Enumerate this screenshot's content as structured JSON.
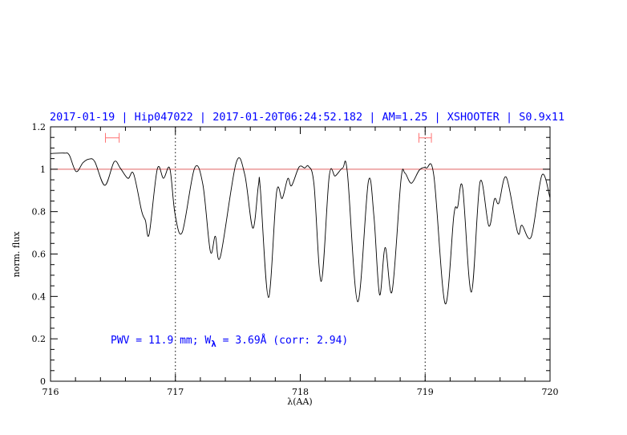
{
  "chart_data": {
    "type": "line",
    "title": "2017-01-19 | Hip047022 | 2017-01-20T06:24:52.182 | AM=1.25 | XSHOOTER | S0.9x11",
    "xlabel": "λ(AA)",
    "ylabel": "norm. flux",
    "xlim": [
      716,
      720
    ],
    "ylim": [
      0,
      1.2
    ],
    "xticks": [
      "716",
      "717",
      "718",
      "719",
      "720"
    ],
    "yticks": [
      "0",
      "0.2",
      "0.4",
      "0.6",
      "0.8",
      "1",
      "1.2"
    ],
    "grid": false,
    "reference_line": {
      "y": 1.0,
      "color": "#e06060"
    },
    "vertical_lines": [
      717,
      719
    ],
    "intervals": [
      {
        "x": [
          716.44,
          716.55
        ],
        "y": 1.148,
        "color": "#ff7070"
      },
      {
        "x": [
          718.95,
          719.05
        ],
        "y": 1.148,
        "color": "#ff7070"
      }
    ],
    "annotation": {
      "prefix": "PWV = 11.9 mm; W",
      "sub": "λ",
      "suffix": " = 3.69Å (corr: 2.94)",
      "color": "#0000ff"
    },
    "series": [
      {
        "color": "#000000",
        "x": [
          716.0,
          716.11,
          716.15,
          716.205,
          716.26,
          716.31,
          716.355,
          716.435,
          716.51,
          716.56,
          716.62,
          716.665,
          716.73,
          716.76,
          716.79,
          716.855,
          716.905,
          716.955,
          716.997,
          717.055,
          717.153,
          717.22,
          717.28,
          717.32,
          717.36,
          717.485,
          717.555,
          717.62,
          717.665,
          717.68,
          717.745,
          717.81,
          717.855,
          717.9,
          717.93,
          717.99,
          718.035,
          718.067,
          718.11,
          718.168,
          718.232,
          718.28,
          718.34,
          718.377,
          718.46,
          718.545,
          718.59,
          718.635,
          718.68,
          718.735,
          718.806,
          718.838,
          718.89,
          718.955,
          719.01,
          719.07,
          719.16,
          719.23,
          719.26,
          719.3,
          719.37,
          719.44,
          719.51,
          719.555,
          719.59,
          719.65,
          719.74,
          719.775,
          719.85,
          719.935,
          720.0
        ],
        "y": [
          1.074,
          1.076,
          1.067,
          0.989,
          1.031,
          1.048,
          1.035,
          0.924,
          1.035,
          1.004,
          0.957,
          0.979,
          0.802,
          0.758,
          0.694,
          1.001,
          0.957,
          1.004,
          0.789,
          0.703,
          1.004,
          0.928,
          0.612,
          0.684,
          0.587,
          1.027,
          0.976,
          0.722,
          0.925,
          0.909,
          0.395,
          0.89,
          0.862,
          0.956,
          0.922,
          1.01,
          1.006,
          1.013,
          0.928,
          0.471,
          0.968,
          0.968,
          1.006,
          0.985,
          0.375,
          0.941,
          0.777,
          0.408,
          0.631,
          0.423,
          0.947,
          0.982,
          0.934,
          0.997,
          1.006,
          0.968,
          0.366,
          0.783,
          0.821,
          0.913,
          0.42,
          0.941,
          0.732,
          0.859,
          0.84,
          0.962,
          0.703,
          0.736,
          0.682,
          0.972,
          0.865
        ]
      }
    ]
  }
}
